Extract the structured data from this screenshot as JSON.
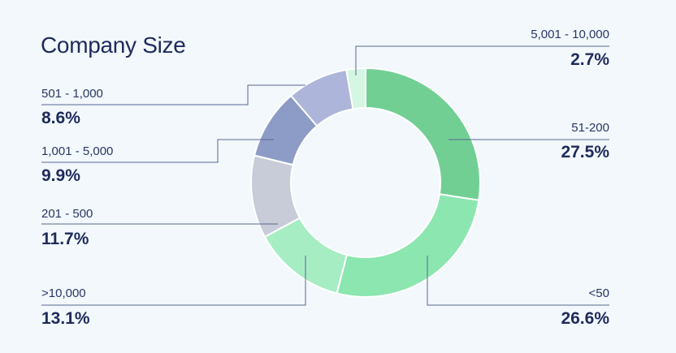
{
  "chart_data": {
    "type": "donut",
    "title": "Company Size",
    "slices": [
      {
        "label": "51-200",
        "value": 27.5,
        "value_label": "27.5%",
        "color": "#72cf94"
      },
      {
        "label": "<50",
        "value": 26.6,
        "value_label": "26.6%",
        "color": "#8be6b0"
      },
      {
        "label": ">10,000",
        "value": 13.1,
        "value_label": "13.1%",
        "color": "#a6edc4"
      },
      {
        "label": "201 - 500",
        "value": 11.7,
        "value_label": "11.7%",
        "color": "#c7ccd8"
      },
      {
        "label": "1,001 - 5,000",
        "value": 9.9,
        "value_label": "9.9%",
        "color": "#8d9cc6"
      },
      {
        "label": "501 - 1,000",
        "value": 8.6,
        "value_label": "8.6%",
        "color": "#adb5da"
      },
      {
        "label": "5,001 - 10,000",
        "value": 2.7,
        "value_label": "2.7%",
        "color": "#d4f6e2"
      }
    ]
  }
}
